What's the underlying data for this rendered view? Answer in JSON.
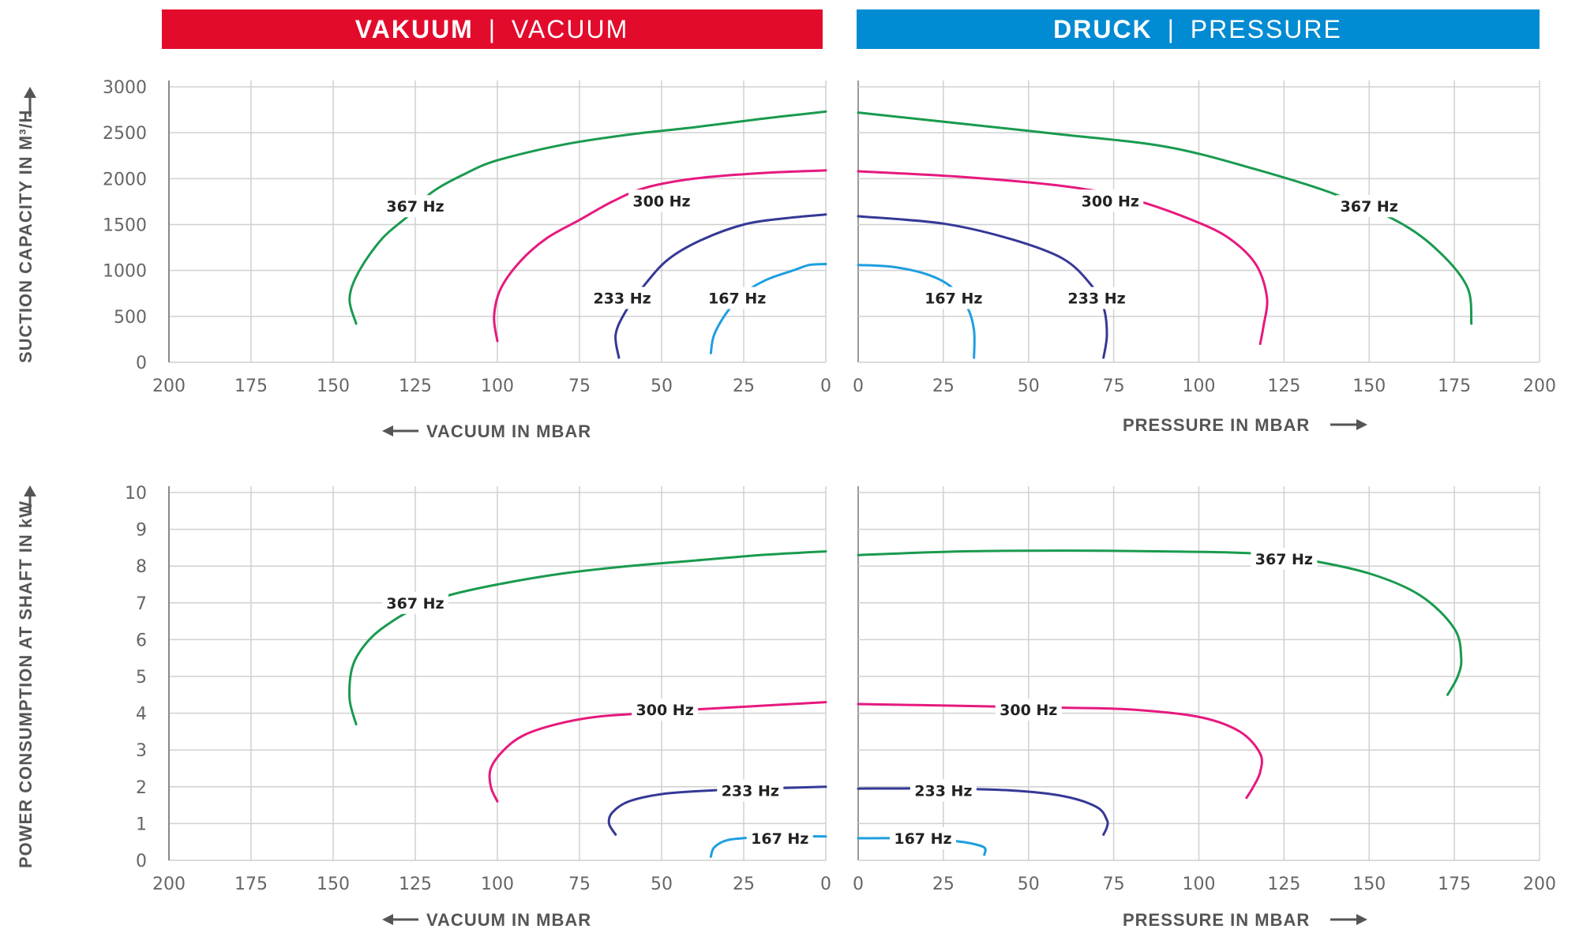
{
  "banners": {
    "vacuum": {
      "bold": "VAKUUM",
      "sep": "|",
      "light": "VACUUM",
      "color": "#e30b2c"
    },
    "pressure": {
      "bold": "DRUCK",
      "sep": "|",
      "light": "PRESSURE",
      "color": "#008bd2"
    }
  },
  "chart_data": [
    {
      "id": "suction-vacuum",
      "type": "line",
      "side": "vacuum",
      "xlabel": "VACUUM IN MBAR",
      "ylabel": "SUCTION CAPACITY IN M³/H",
      "xlim": [
        200,
        0
      ],
      "ylim": [
        0,
        3000
      ],
      "xticks": [
        200,
        175,
        150,
        125,
        100,
        75,
        50,
        25,
        0
      ],
      "yticks": [
        0,
        500,
        1000,
        1500,
        2000,
        2500,
        3000
      ],
      "series": [
        {
          "name": "367 Hz",
          "color": "#1a9a4f",
          "points": [
            [
              143,
              420
            ],
            [
              145,
              700
            ],
            [
              142,
              1000
            ],
            [
              135,
              1350
            ],
            [
              127,
              1600
            ],
            [
              120,
              1850
            ],
            [
              110,
              2050
            ],
            [
              100,
              2200
            ],
            [
              80,
              2370
            ],
            [
              60,
              2480
            ],
            [
              40,
              2560
            ],
            [
              20,
              2650
            ],
            [
              0,
              2730
            ]
          ]
        },
        {
          "name": "300 Hz",
          "color": "#e6197e",
          "points": [
            [
              100,
              230
            ],
            [
              101,
              500
            ],
            [
              99,
              800
            ],
            [
              93,
              1100
            ],
            [
              85,
              1350
            ],
            [
              75,
              1550
            ],
            [
              65,
              1750
            ],
            [
              55,
              1900
            ],
            [
              40,
              2000
            ],
            [
              20,
              2060
            ],
            [
              0,
              2090
            ]
          ]
        },
        {
          "name": "233 Hz",
          "color": "#343996",
          "points": [
            [
              63,
              50
            ],
            [
              64,
              300
            ],
            [
              61,
              550
            ],
            [
              55,
              850
            ],
            [
              48,
              1120
            ],
            [
              38,
              1330
            ],
            [
              25,
              1500
            ],
            [
              12,
              1570
            ],
            [
              0,
              1610
            ]
          ]
        },
        {
          "name": "167 Hz",
          "color": "#1d9ee0",
          "points": [
            [
              35,
              100
            ],
            [
              34,
              300
            ],
            [
              30,
              550
            ],
            [
              25,
              750
            ],
            [
              18,
              900
            ],
            [
              10,
              1000
            ],
            [
              5,
              1060
            ],
            [
              0,
              1070
            ]
          ]
        }
      ],
      "labels": [
        {
          "text": "367 Hz",
          "x": 125,
          "y": 1700
        },
        {
          "text": "300 Hz",
          "x": 50,
          "y": 1760
        },
        {
          "text": "233 Hz",
          "x": 62,
          "y": 700
        },
        {
          "text": "167 Hz",
          "x": 27,
          "y": 700
        }
      ]
    },
    {
      "id": "suction-pressure",
      "type": "line",
      "side": "pressure",
      "xlabel": "PRESSURE IN MBAR",
      "ylabel": "",
      "xlim": [
        0,
        200
      ],
      "ylim": [
        0,
        3000
      ],
      "xticks": [
        0,
        25,
        50,
        75,
        100,
        125,
        150,
        175,
        200
      ],
      "yticks": [
        0,
        500,
        1000,
        1500,
        2000,
        2500,
        3000
      ],
      "series": [
        {
          "name": "367 Hz",
          "color": "#1a9a4f",
          "points": [
            [
              0,
              2720
            ],
            [
              30,
              2600
            ],
            [
              60,
              2480
            ],
            [
              90,
              2350
            ],
            [
              115,
              2120
            ],
            [
              140,
              1830
            ],
            [
              160,
              1500
            ],
            [
              172,
              1150
            ],
            [
              179,
              800
            ],
            [
              180,
              420
            ]
          ]
        },
        {
          "name": "300 Hz",
          "color": "#e6197e",
          "points": [
            [
              0,
              2080
            ],
            [
              30,
              2020
            ],
            [
              60,
              1920
            ],
            [
              80,
              1780
            ],
            [
              100,
              1520
            ],
            [
              110,
              1320
            ],
            [
              117,
              1050
            ],
            [
              120,
              700
            ],
            [
              119,
              400
            ],
            [
              118,
              200
            ]
          ]
        },
        {
          "name": "233 Hz",
          "color": "#343996",
          "points": [
            [
              0,
              1590
            ],
            [
              25,
              1510
            ],
            [
              45,
              1340
            ],
            [
              60,
              1130
            ],
            [
              68,
              860
            ],
            [
              72,
              600
            ],
            [
              73,
              300
            ],
            [
              72,
              50
            ]
          ]
        },
        {
          "name": "167 Hz",
          "color": "#1d9ee0",
          "points": [
            [
              0,
              1060
            ],
            [
              10,
              1040
            ],
            [
              20,
              960
            ],
            [
              27,
              830
            ],
            [
              32,
              600
            ],
            [
              34,
              350
            ],
            [
              34,
              50
            ]
          ]
        }
      ],
      "labels": [
        {
          "text": "300 Hz",
          "x": 74,
          "y": 1760
        },
        {
          "text": "367 Hz",
          "x": 150,
          "y": 1700
        },
        {
          "text": "167 Hz",
          "x": 28,
          "y": 700
        },
        {
          "text": "233 Hz",
          "x": 70,
          "y": 700
        }
      ]
    },
    {
      "id": "power-vacuum",
      "type": "line",
      "side": "vacuum",
      "xlabel": "VACUUM IN MBAR",
      "ylabel": "POWER CONSUMPTION AT SHAFT IN kW",
      "xlim": [
        200,
        0
      ],
      "ylim": [
        0,
        10
      ],
      "xticks": [
        200,
        175,
        150,
        125,
        100,
        75,
        50,
        25,
        0
      ],
      "yticks": [
        0,
        1,
        2,
        3,
        4,
        5,
        6,
        7,
        8,
        9,
        10
      ],
      "series": [
        {
          "name": "367 Hz",
          "color": "#1a9a4f",
          "points": [
            [
              143,
              3.7
            ],
            [
              145,
              4.4
            ],
            [
              144,
              5.3
            ],
            [
              139,
              6.0
            ],
            [
              132,
              6.5
            ],
            [
              124,
              6.9
            ],
            [
              115,
              7.2
            ],
            [
              100,
              7.5
            ],
            [
              80,
              7.8
            ],
            [
              60,
              8.0
            ],
            [
              40,
              8.15
            ],
            [
              20,
              8.3
            ],
            [
              0,
              8.4
            ]
          ]
        },
        {
          "name": "300 Hz",
          "color": "#e6197e",
          "points": [
            [
              100,
              1.6
            ],
            [
              102,
              2.0
            ],
            [
              102,
              2.5
            ],
            [
              98,
              3.0
            ],
            [
              92,
              3.4
            ],
            [
              82,
              3.7
            ],
            [
              70,
              3.9
            ],
            [
              55,
              4.0
            ],
            [
              40,
              4.1
            ],
            [
              20,
              4.2
            ],
            [
              0,
              4.3
            ]
          ]
        },
        {
          "name": "233 Hz",
          "color": "#343996",
          "points": [
            [
              64,
              0.7
            ],
            [
              66,
              1.0
            ],
            [
              65,
              1.3
            ],
            [
              60,
              1.6
            ],
            [
              50,
              1.8
            ],
            [
              35,
              1.9
            ],
            [
              20,
              1.95
            ],
            [
              0,
              2.0
            ]
          ]
        },
        {
          "name": "167 Hz",
          "color": "#1d9ee0",
          "points": [
            [
              35,
              0.1
            ],
            [
              34,
              0.35
            ],
            [
              30,
              0.55
            ],
            [
              22,
              0.62
            ],
            [
              12,
              0.65
            ],
            [
              0,
              0.65
            ]
          ]
        }
      ],
      "labels": [
        {
          "text": "367 Hz",
          "x": 125,
          "y": 7.0
        },
        {
          "text": "300 Hz",
          "x": 49,
          "y": 4.1
        },
        {
          "text": "233 Hz",
          "x": 23,
          "y": 1.9
        },
        {
          "text": "167 Hz",
          "x": 14,
          "y": 0.6
        }
      ]
    },
    {
      "id": "power-pressure",
      "type": "line",
      "side": "pressure",
      "xlabel": "PRESSURE IN MBAR",
      "ylabel": "",
      "xlim": [
        0,
        200
      ],
      "ylim": [
        0,
        10
      ],
      "xticks": [
        0,
        25,
        50,
        75,
        100,
        125,
        150,
        175,
        200
      ],
      "yticks": [
        0,
        1,
        2,
        3,
        4,
        5,
        6,
        7,
        8,
        9,
        10
      ],
      "series": [
        {
          "name": "367 Hz",
          "color": "#1a9a4f",
          "points": [
            [
              0,
              8.3
            ],
            [
              30,
              8.4
            ],
            [
              60,
              8.42
            ],
            [
              90,
              8.4
            ],
            [
              115,
              8.35
            ],
            [
              130,
              8.2
            ],
            [
              150,
              7.8
            ],
            [
              165,
              7.2
            ],
            [
              175,
              6.3
            ],
            [
              177,
              5.5
            ],
            [
              176,
              5.0
            ],
            [
              173,
              4.5
            ]
          ]
        },
        {
          "name": "300 Hz",
          "color": "#e6197e",
          "points": [
            [
              0,
              4.25
            ],
            [
              30,
              4.2
            ],
            [
              60,
              4.15
            ],
            [
              80,
              4.1
            ],
            [
              100,
              3.9
            ],
            [
              112,
              3.5
            ],
            [
              118,
              2.9
            ],
            [
              118,
              2.4
            ],
            [
              116,
              2.0
            ],
            [
              114,
              1.7
            ]
          ]
        },
        {
          "name": "233 Hz",
          "color": "#343996",
          "points": [
            [
              0,
              1.95
            ],
            [
              25,
              1.95
            ],
            [
              45,
              1.9
            ],
            [
              60,
              1.75
            ],
            [
              70,
              1.45
            ],
            [
              73,
              1.1
            ],
            [
              73,
              0.9
            ],
            [
              72,
              0.7
            ]
          ]
        },
        {
          "name": "167 Hz",
          "color": "#1d9ee0",
          "points": [
            [
              0,
              0.6
            ],
            [
              15,
              0.6
            ],
            [
              25,
              0.55
            ],
            [
              32,
              0.48
            ],
            [
              37,
              0.35
            ],
            [
              37,
              0.15
            ]
          ]
        }
      ],
      "labels": [
        {
          "text": "367 Hz",
          "x": 125,
          "y": 8.2
        },
        {
          "text": "300 Hz",
          "x": 50,
          "y": 4.1
        },
        {
          "text": "233 Hz",
          "x": 25,
          "y": 1.9
        },
        {
          "text": "167 Hz",
          "x": 19,
          "y": 0.6
        }
      ]
    }
  ]
}
